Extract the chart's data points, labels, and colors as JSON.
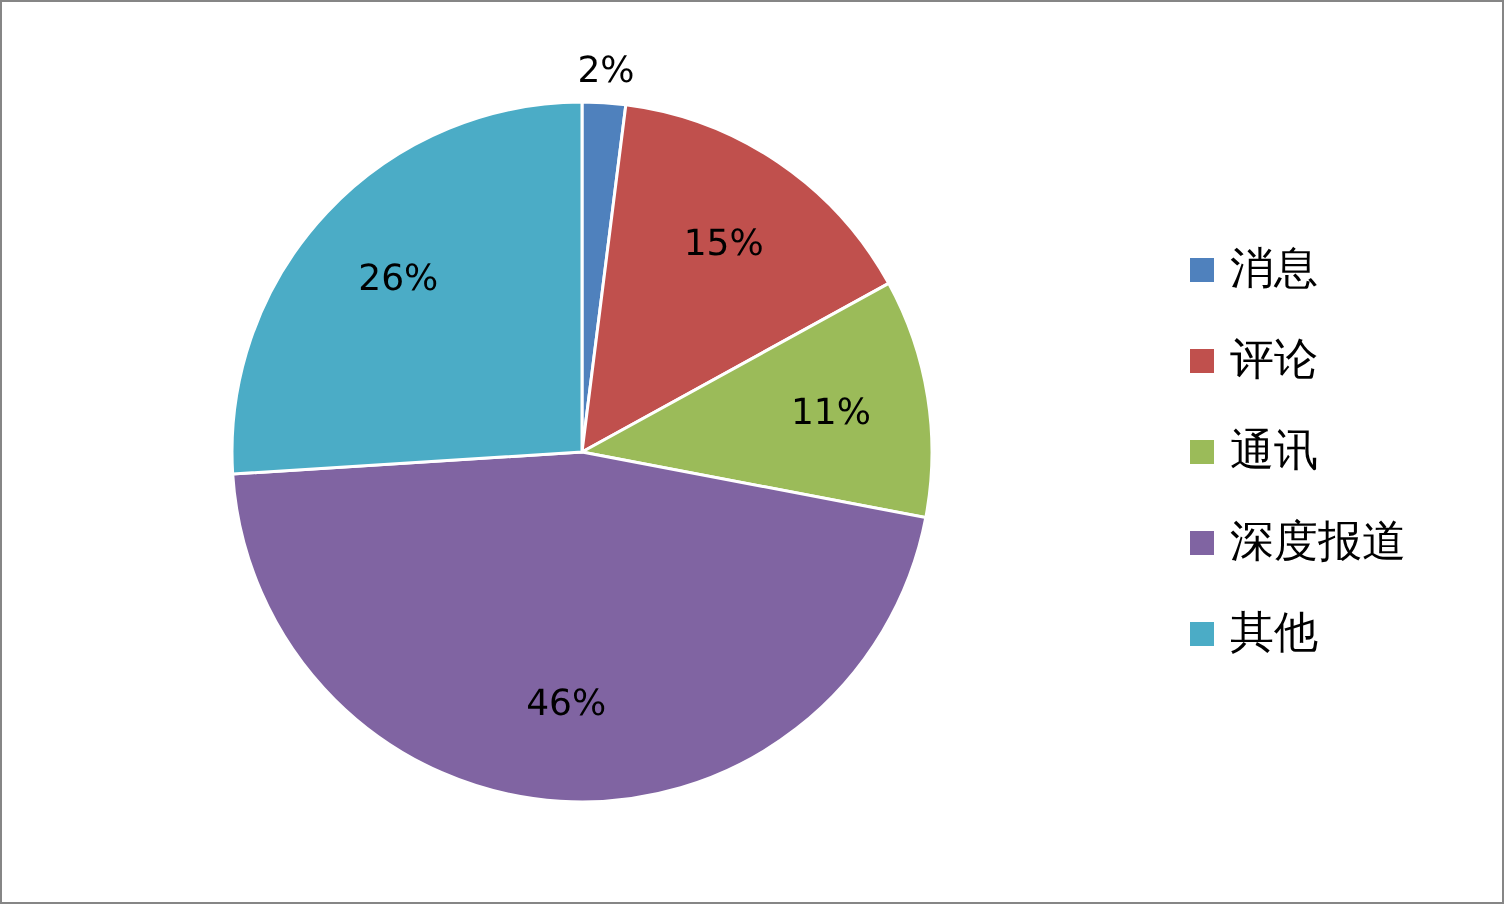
{
  "chart_data": {
    "type": "pie",
    "categories": [
      "消息",
      "评论",
      "通讯",
      "深度报道",
      "其他"
    ],
    "values": [
      2,
      15,
      11,
      46,
      26
    ],
    "colors": [
      "#4f81bd",
      "#c0504d",
      "#9bbb59",
      "#8064a2",
      "#4bacc6"
    ],
    "value_labels": [
      "2%",
      "15%",
      "11%",
      "46%",
      "26%"
    ],
    "legend": "right"
  }
}
